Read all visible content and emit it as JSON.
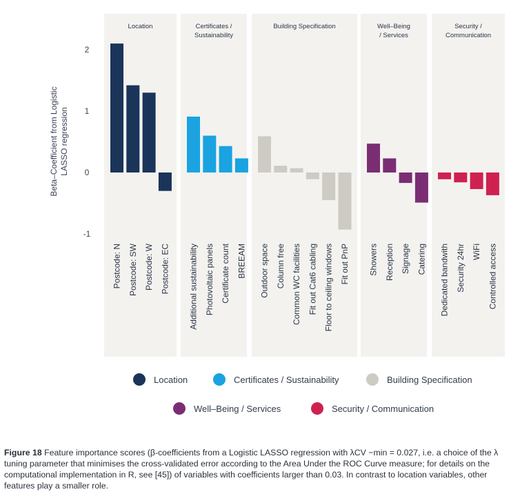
{
  "chart_data": {
    "type": "bar",
    "ylabel": "Beta-Coefficient from Logistic LASSO regression",
    "ylabel_lines": [
      "Beta–Coefficient from Logistic",
      "LASSO regression"
    ],
    "ylim": [
      -1,
      2
    ],
    "yticks": [
      -1,
      0,
      1,
      2
    ],
    "grid": false,
    "legend_position": "bottom",
    "groups": [
      {
        "name": "Location",
        "label_lines": [
          "Location"
        ],
        "color": "#1b3459",
        "categories": [
          "Postcode: N",
          "Postcode: SW",
          "Postcode: W",
          "Postcode: EC"
        ],
        "values": [
          2.1,
          1.42,
          1.3,
          -0.3
        ]
      },
      {
        "name": "Certificates / Sustainability",
        "label_lines": [
          "Certificates /",
          "Sustainability"
        ],
        "color": "#1aa3e0",
        "categories": [
          "Additional sustainability",
          "Photovoltaic panels",
          "Certificate count",
          "BREEAM"
        ],
        "values": [
          0.91,
          0.6,
          0.43,
          0.23
        ]
      },
      {
        "name": "Building Specification",
        "label_lines": [
          "Building Specification"
        ],
        "color": "#cdcbc4",
        "categories": [
          "Outdoor space",
          "Column free",
          "Common WC facilities",
          "Fit out Cat6 cabling",
          "Floor to ceiling windows",
          "Fit out PnP"
        ],
        "values": [
          0.59,
          0.11,
          0.07,
          -0.11,
          -0.45,
          -0.93
        ]
      },
      {
        "name": "Well–Being / Services",
        "label_lines": [
          "Well–Being",
          "/ Services"
        ],
        "color": "#7b2d73",
        "categories": [
          "Showers",
          "Reception",
          "Signage",
          "Catering"
        ],
        "values": [
          0.47,
          0.23,
          -0.17,
          -0.49
        ]
      },
      {
        "name": "Security / Communication",
        "label_lines": [
          "Security /",
          "Communication"
        ],
        "color": "#cf2150",
        "categories": [
          "Dedicated bandwith",
          "Security 24hr",
          "WiFi",
          "Controlled access"
        ],
        "values": [
          -0.11,
          -0.16,
          -0.27,
          -0.37
        ]
      }
    ]
  },
  "legend": {
    "row1": [
      {
        "label": "Location",
        "color": "#1b3459"
      },
      {
        "label": "Certificates / Sustainability",
        "color": "#1aa3e0"
      },
      {
        "label": "Building Specification",
        "color": "#cdcbc4"
      }
    ],
    "row2": [
      {
        "label": "Well–Being / Services",
        "color": "#7b2d73"
      },
      {
        "label": "Security / Communication",
        "color": "#cf2150"
      }
    ]
  },
  "caption": {
    "figure_label": "Figure 18",
    "text": " Feature importance scores (β-coefficients from a Logistic LASSO regression with λCV −min = 0.027, i.e. a choice of the λ tuning parameter that minimises the cross-validated error according to the Area Under the ROC Curve measure; for details on the computational implementation in R, see [45]) of variables with coefficients larger than 0.03. In contrast to location variables, other features play a smaller role."
  }
}
